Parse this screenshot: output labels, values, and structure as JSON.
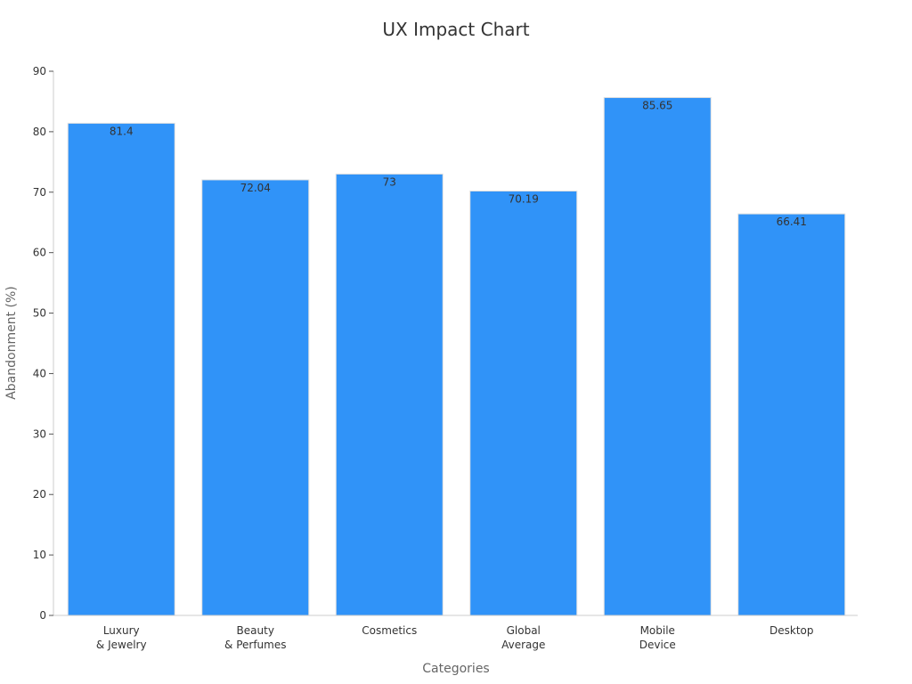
{
  "chart_data": {
    "type": "bar",
    "title": "UX Impact Chart",
    "xlabel": "Categories",
    "ylabel": "Abandonment (%)",
    "categories": [
      [
        "Luxury",
        "& Jewelry"
      ],
      [
        "Beauty",
        "& Perfumes"
      ],
      [
        "Cosmetics"
      ],
      [
        "Global",
        "Average"
      ],
      [
        "Mobile",
        "Device"
      ],
      [
        "Desktop"
      ]
    ],
    "values": [
      81.4,
      72.04,
      73,
      70.19,
      85.65,
      66.41
    ],
    "value_labels": [
      "81.4",
      "72.04",
      "73",
      "70.19",
      "85.65",
      "66.41"
    ],
    "ylim": [
      0,
      90
    ],
    "yticks": [
      0,
      10,
      20,
      30,
      40,
      50,
      60,
      70,
      80,
      90
    ],
    "grid": false,
    "legend": "none",
    "colors": {
      "bar": "#3093f8",
      "bar_edge": "#e0e0e0",
      "axis": "#cccccc",
      "text": "#333333",
      "axis_title": "#666666"
    }
  }
}
